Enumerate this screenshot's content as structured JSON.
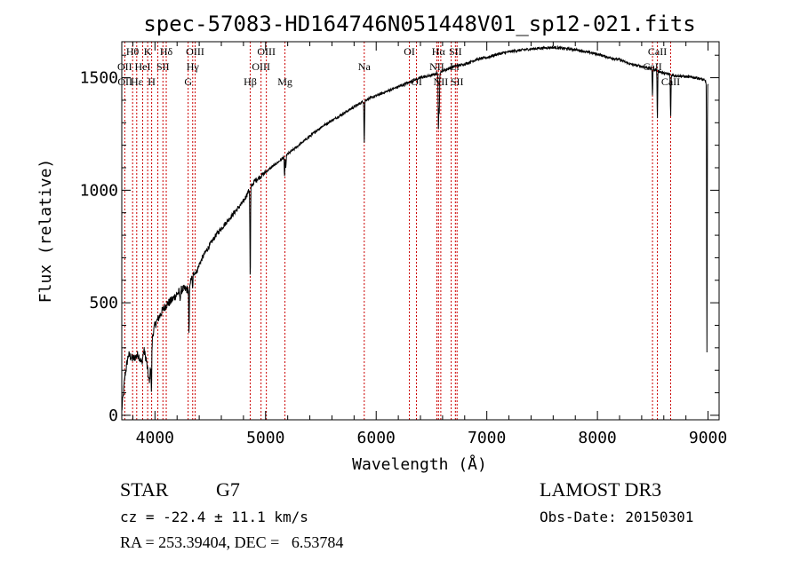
{
  "chart_data": {
    "type": "line",
    "title": "spec-57083-HD164746N051448V01_sp12-021.fits",
    "xlabel": "Wavelength (Å)",
    "ylabel": "Flux (relative)",
    "xlim": [
      3700,
      9100
    ],
    "ylim": [
      -20,
      1660
    ],
    "x_ticks": [
      4000,
      5000,
      6000,
      7000,
      8000,
      9000
    ],
    "y_ticks": [
      0,
      500,
      1000,
      1500
    ],
    "grid": false,
    "continuum": {
      "x": [
        3700,
        3730,
        3760,
        3800,
        3850,
        3880,
        3900,
        3920,
        3950,
        3980,
        4000,
        4050,
        4100,
        4150,
        4200,
        4250,
        4300,
        4330,
        4350,
        4380,
        4400,
        4450,
        4500,
        4550,
        4600,
        4700,
        4800,
        4850,
        4900,
        5000,
        5100,
        5200,
        5300,
        5400,
        5500,
        5600,
        5700,
        5800,
        5900,
        6000,
        6100,
        6200,
        6300,
        6400,
        6500,
        6600,
        6700,
        6800,
        6900,
        7000,
        7100,
        7200,
        7300,
        7400,
        7500,
        7600,
        7700,
        7800,
        7900,
        8000,
        8100,
        8200,
        8300,
        8400,
        8500,
        8550,
        8600,
        8650,
        8700,
        8800,
        8900,
        8960,
        8990,
        9000
      ],
      "y": [
        20,
        180,
        270,
        250,
        270,
        230,
        290,
        250,
        140,
        360,
        400,
        450,
        490,
        510,
        540,
        560,
        560,
        610,
        630,
        640,
        670,
        720,
        760,
        800,
        830,
        890,
        950,
        1000,
        1040,
        1080,
        1120,
        1160,
        1200,
        1240,
        1280,
        1310,
        1340,
        1370,
        1400,
        1420,
        1440,
        1460,
        1480,
        1500,
        1510,
        1530,
        1550,
        1560,
        1580,
        1590,
        1605,
        1615,
        1622,
        1628,
        1632,
        1635,
        1630,
        1625,
        1615,
        1605,
        1590,
        1580,
        1560,
        1550,
        1540,
        1530,
        1520,
        1515,
        1510,
        1505,
        1500,
        1490,
        1480,
        1470
      ]
    },
    "absorption_lines": [
      {
        "x": 3968,
        "depth": 180
      },
      {
        "x": 4226,
        "depth": 40
      },
      {
        "x": 4308,
        "depth": 220
      },
      {
        "x": 4340,
        "depth": 60
      },
      {
        "x": 4861,
        "depth": 420
      },
      {
        "x": 5172,
        "depth": 90
      },
      {
        "x": 5183,
        "depth": 60
      },
      {
        "x": 5892,
        "depth": 190
      },
      {
        "x": 6563,
        "depth": 260
      },
      {
        "x": 6570,
        "depth": 180
      },
      {
        "x": 8498,
        "depth": 120
      },
      {
        "x": 8542,
        "depth": 220
      },
      {
        "x": 8662,
        "depth": 190
      },
      {
        "x": 8990,
        "depth": 1200
      }
    ],
    "line_markers": [
      3727,
      3798,
      3835,
      3889,
      3934,
      3970,
      4026,
      4072,
      4102,
      4300,
      4341,
      4363,
      4861,
      4959,
      5007,
      5175,
      5892,
      6300,
      6364,
      6548,
      6563,
      6584,
      6678,
      6716,
      6731,
      8498,
      8542,
      8662
    ],
    "line_labels": [
      {
        "text": "Hθ",
        "x": 3797,
        "row": 1
      },
      {
        "text": "K",
        "x": 3934,
        "row": 1
      },
      {
        "text": "Hδ",
        "x": 4102,
        "row": 1
      },
      {
        "text": "OIII",
        "x": 4363,
        "row": 1
      },
      {
        "text": "OIII",
        "x": 5007,
        "row": 1
      },
      {
        "text": "OI",
        "x": 6300,
        "row": 1
      },
      {
        "text": "Hα",
        "x": 6563,
        "row": 1
      },
      {
        "text": "SII",
        "x": 6716,
        "row": 1
      },
      {
        "text": "CaII",
        "x": 8542,
        "row": 1
      },
      {
        "text": "OII",
        "x": 3727,
        "row": 2
      },
      {
        "text": "HeI",
        "x": 3889,
        "row": 2
      },
      {
        "text": "SII",
        "x": 4072,
        "row": 2
      },
      {
        "text": "Hγ",
        "x": 4341,
        "row": 2
      },
      {
        "text": "OIII",
        "x": 4959,
        "row": 2
      },
      {
        "text": "Na",
        "x": 5892,
        "row": 2
      },
      {
        "text": "NII",
        "x": 6548,
        "row": 2
      },
      {
        "text": "Li",
        "x": 6708,
        "row": 2
      },
      {
        "text": "CaII",
        "x": 8498,
        "row": 2
      },
      {
        "text": "OII",
        "x": 3730,
        "row": 3
      },
      {
        "text": "Hε",
        "x": 3835,
        "row": 3
      },
      {
        "text": "H",
        "x": 3970,
        "row": 3
      },
      {
        "text": "G",
        "x": 4300,
        "row": 3
      },
      {
        "text": "Hβ",
        "x": 4861,
        "row": 3
      },
      {
        "text": "Mg",
        "x": 5175,
        "row": 3
      },
      {
        "text": "OI",
        "x": 6364,
        "row": 3
      },
      {
        "text": "NII",
        "x": 6584,
        "row": 3
      },
      {
        "text": "SII",
        "x": 6731,
        "row": 3
      },
      {
        "text": "CaII",
        "x": 8662,
        "row": 3
      }
    ],
    "colors": {
      "spectrum": "#000000",
      "markers": "#cc0000",
      "axes": "#000000"
    }
  },
  "info": {
    "object_class": "STAR",
    "subclass": "G7",
    "redshift": "cz = -22.4 ± 11.1 km/s",
    "coords": "RA = 253.39404, DEC =   6.53784",
    "survey": "LAMOST DR3",
    "obs_date": "Obs-Date: 20150301"
  }
}
